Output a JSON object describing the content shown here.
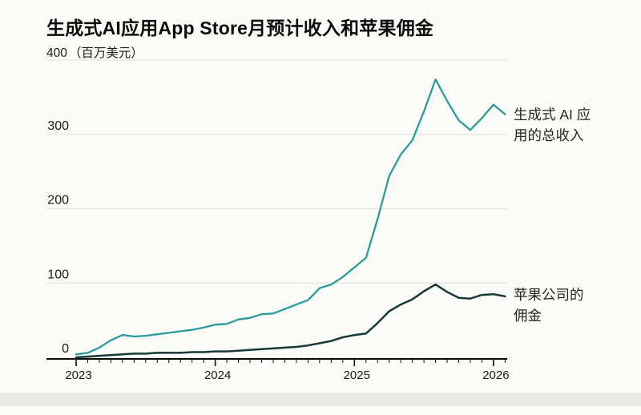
{
  "title": "生成式AI应用App Store月预计收入和苹果佣金",
  "y_axis": {
    "top_value": "400",
    "unit": "（百万美元）",
    "tick_labels": [
      "300",
      "200",
      "100",
      "0"
    ]
  },
  "x_axis": {
    "years": [
      "2023",
      "2024",
      "2025",
      "2026"
    ]
  },
  "annotations": {
    "revenue_lines": [
      "生成式 AI 应",
      "用的总收入"
    ],
    "commission_lines": [
      "苹果公司的",
      "佣金"
    ]
  },
  "colors": {
    "revenue_line": "#2a9a9c",
    "commission_line": "#16393a",
    "gridline": "#e3e3e0",
    "axis": "#0a0a0a",
    "text": "#1a1a1a"
  },
  "chart_data": {
    "type": "line",
    "title": "生成式AI应用App Store月预计收入和苹果佣金",
    "unit_label": "百万美元",
    "ylabel": "月预计收入（百万美元）",
    "ylim": [
      0,
      400
    ],
    "y_ticks": [
      0,
      100,
      200,
      300,
      400
    ],
    "grid": "horizontal",
    "legend_position": "right-annotations",
    "x": [
      "2023-01",
      "2023-02",
      "2023-03",
      "2023-04",
      "2023-05",
      "2023-06",
      "2023-07",
      "2023-08",
      "2023-09",
      "2023-10",
      "2023-11",
      "2023-12",
      "2024-01",
      "2024-02",
      "2024-03",
      "2024-04",
      "2024-05",
      "2024-06",
      "2024-07",
      "2024-08",
      "2024-09",
      "2024-10",
      "2024-11",
      "2024-12",
      "2025-01",
      "2025-02",
      "2025-03",
      "2025-04",
      "2025-05",
      "2025-06",
      "2025-07",
      "2025-08",
      "2025-09",
      "2025-10",
      "2025-11",
      "2025-12",
      "2026-01",
      "2026-02"
    ],
    "series": [
      {
        "name": "生成式 AI 应用的总收入",
        "color": "#2a9a9c",
        "values": [
          4,
          6,
          13,
          23,
          30,
          28,
          29,
          31,
          33,
          35,
          37,
          40,
          44,
          45,
          51,
          53,
          58,
          59,
          65,
          71,
          77,
          93,
          98,
          108,
          121,
          134,
          186,
          244,
          273,
          292,
          331,
          374,
          345,
          319,
          306,
          322,
          340,
          327
        ]
      },
      {
        "name": "苹果公司的佣金",
        "color": "#16393a",
        "values": [
          0,
          1,
          2,
          3,
          4,
          5,
          5,
          6,
          6,
          6,
          7,
          7,
          8,
          8,
          9,
          10,
          11,
          12,
          13,
          14,
          16,
          19,
          22,
          27,
          30,
          32,
          46,
          62,
          71,
          78,
          89,
          98,
          88,
          80,
          79,
          84,
          85,
          82
        ]
      }
    ]
  }
}
